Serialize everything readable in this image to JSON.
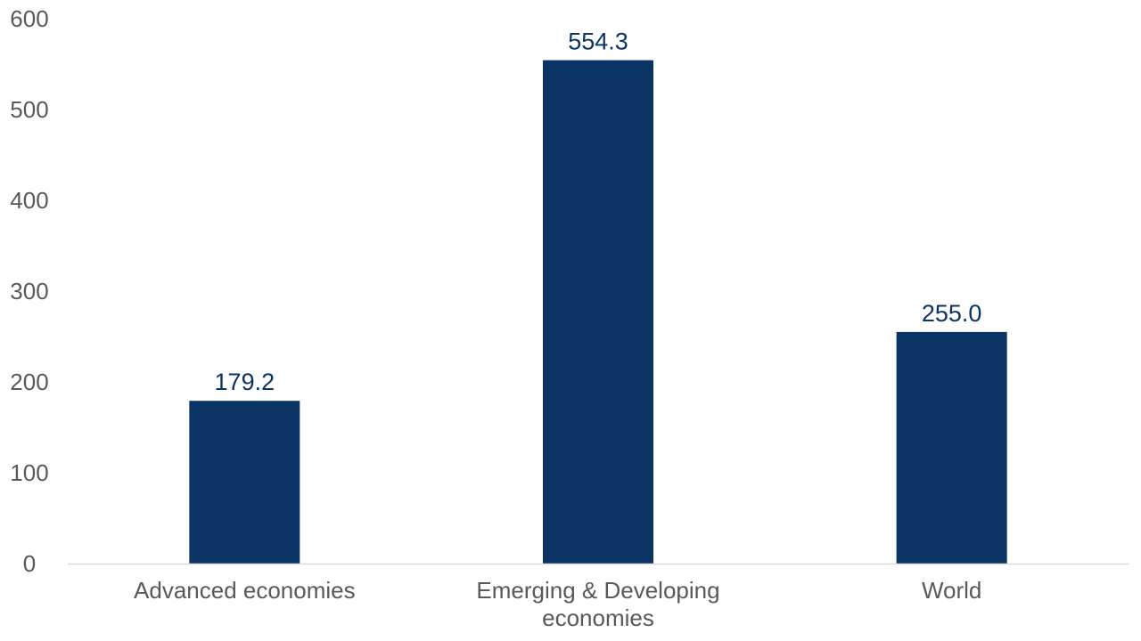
{
  "chart_data": {
    "type": "bar",
    "title": "",
    "xlabel": "",
    "ylabel": "",
    "categories": [
      [
        "Advanced economies"
      ],
      [
        "Emerging & Developing",
        "economies"
      ],
      [
        "World"
      ]
    ],
    "values": [
      179.2,
      554.3,
      255.0
    ],
    "value_labels": [
      "179.2",
      "554.3",
      "255.0"
    ],
    "ylim": [
      0,
      600
    ],
    "yticks": [
      0,
      100,
      200,
      300,
      400,
      500,
      600
    ],
    "grid": false,
    "legend": "none",
    "colors": {
      "bar": "#0b3364",
      "data_label": "#0b3364",
      "tick_label": "#595959",
      "axis_line": "#d9d9d9"
    }
  }
}
